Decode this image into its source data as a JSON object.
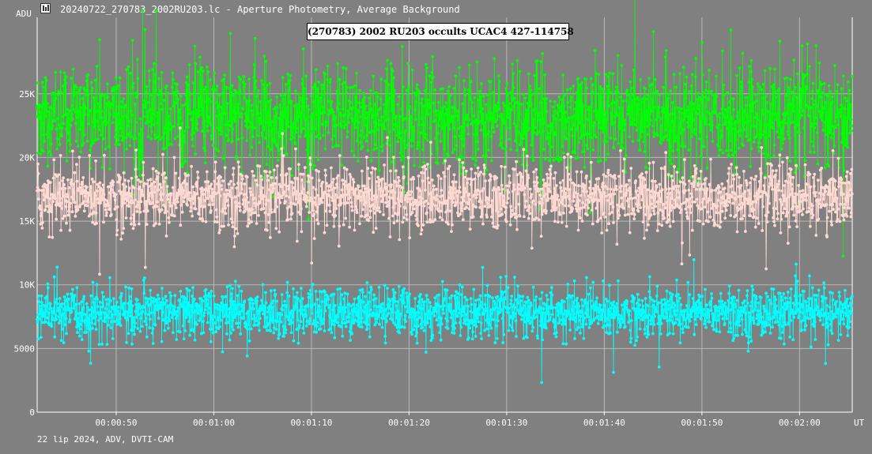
{
  "window": {
    "title": "20240722_270783_2002RU203.lc - Aperture Photometry, Average Background",
    "icon": "app-icon"
  },
  "footer": "22 lip 2024, ADV, DVTI-CAM",
  "chart_data": {
    "type": "scatter",
    "title": "(270783) 2002 RU203 occults UCAC4 427-114758",
    "ylabel": "ADU",
    "xlabel": "UT",
    "y_ticks": [
      "0",
      "5000",
      "10K",
      "15K",
      "20K",
      "25K"
    ],
    "y_tick_values": [
      0,
      5000,
      10000,
      15000,
      20000,
      25000
    ],
    "ylim": [
      0,
      31000
    ],
    "x_ticks": [
      "00:00:50",
      "00:01:00",
      "00:01:10",
      "00:01:20",
      "00:01:30",
      "00:01:40",
      "00:01:50",
      "00:02:00"
    ],
    "x_tick_values": [
      50,
      60,
      70,
      80,
      90,
      100,
      110,
      120
    ],
    "xlim": [
      41.9,
      125.4
    ],
    "x_step": 0.04,
    "grid": true,
    "series": [
      {
        "color": "#00ff00",
        "mean": 23200,
        "sd": 2000
      },
      {
        "color": "#ffd9d2",
        "mean": 16900,
        "sd": 1300
      },
      {
        "color": "#00ffff",
        "mean": 7800,
        "sd": 1000
      }
    ]
  }
}
